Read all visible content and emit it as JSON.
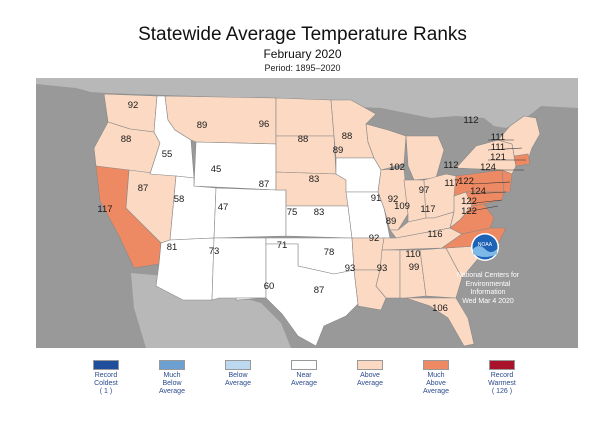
{
  "title": "Statewide Average Temperature Ranks",
  "subtitle": "February 2020",
  "period": "Period: 1895–2020",
  "credit": {
    "line1": "National Centers for",
    "line2": "Environmental",
    "line3": "Information",
    "date": "Wed Mar 4 2020"
  },
  "logo_text": "NOAA",
  "colors": {
    "background": "#999999",
    "record_coldest": "#1f4e9c",
    "much_below": "#6ca0d0",
    "below": "#bcd9ef",
    "near": "#ffffff",
    "above": "#fbd9c2",
    "much_above": "#ee8a63",
    "record_warmest": "#a8122a"
  },
  "legend": [
    {
      "key": "record_coldest",
      "label": "Record\nColdest\n( 1 )"
    },
    {
      "key": "much_below",
      "label": "Much\nBelow\nAverage"
    },
    {
      "key": "below",
      "label": "Below\nAverage"
    },
    {
      "key": "near",
      "label": "Near\nAverage"
    },
    {
      "key": "above",
      "label": "Above\nAverage"
    },
    {
      "key": "much_above",
      "label": "Much\nAbove\nAverage"
    },
    {
      "key": "record_warmest",
      "label": "Record\nWarmest\n( 126 )"
    }
  ],
  "ranks": [
    {
      "label": "92"
    },
    {
      "label": "88"
    },
    {
      "label": "117"
    },
    {
      "label": "55"
    },
    {
      "label": "87"
    },
    {
      "label": "58"
    },
    {
      "label": "81"
    },
    {
      "label": "89"
    },
    {
      "label": "45"
    },
    {
      "label": "47"
    },
    {
      "label": "73"
    },
    {
      "label": "96"
    },
    {
      "label": "88"
    },
    {
      "label": "87"
    },
    {
      "label": "75"
    },
    {
      "label": "71"
    },
    {
      "label": "60"
    },
    {
      "label": "88"
    },
    {
      "label": "83"
    },
    {
      "label": "83"
    },
    {
      "label": "78"
    },
    {
      "label": "87"
    },
    {
      "label": "89"
    },
    {
      "label": "91"
    },
    {
      "label": "102"
    },
    {
      "label": "92"
    },
    {
      "label": "97"
    },
    {
      "label": "89"
    },
    {
      "label": "92"
    },
    {
      "label": "93"
    },
    {
      "label": "93"
    },
    {
      "label": "99"
    },
    {
      "label": "106"
    },
    {
      "label": "110"
    },
    {
      "label": "116"
    },
    {
      "label": "117"
    },
    {
      "label": "109"
    },
    {
      "label": "117"
    },
    {
      "label": "112"
    },
    {
      "label": "112"
    },
    {
      "label": "111"
    },
    {
      "label": "111"
    },
    {
      "label": "121"
    },
    {
      "label": "124"
    },
    {
      "label": "122"
    },
    {
      "label": "124"
    },
    {
      "label": "122"
    },
    {
      "label": "122"
    }
  ]
}
